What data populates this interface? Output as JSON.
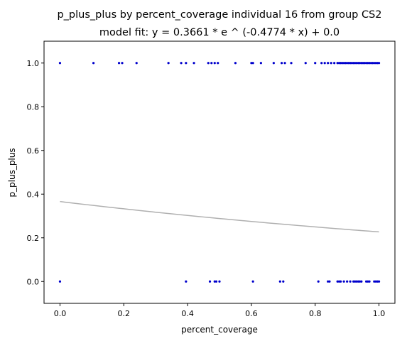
{
  "chart_data": {
    "type": "scatter",
    "title": "p_plus_plus by percent_coverage individual 16 from group CS2",
    "subtitle": "model fit: y = 0.3661 * e ^ (-0.4774 * x) + 0.0",
    "xlabel": "percent_coverage",
    "ylabel": "p_plus_plus",
    "xlim": [
      -0.05,
      1.05
    ],
    "ylim": [
      -0.1,
      1.1
    ],
    "xticks": [
      "0.0",
      "0.2",
      "0.4",
      "0.6",
      "0.8",
      "1.0"
    ],
    "yticks": [
      "0.0",
      "0.2",
      "0.4",
      "0.6",
      "0.8",
      "1.0"
    ],
    "grid": false,
    "colors": {
      "points": "#0000cc",
      "fit_line": "#b0b0b0"
    },
    "fit": {
      "a": 0.3661,
      "b": -0.4774,
      "c": 0.0,
      "x_range": [
        0,
        1
      ]
    },
    "series": [
      {
        "x": [
          0.0,
          0.105,
          0.185,
          0.195,
          0.24,
          0.34,
          0.38,
          0.395,
          0.42,
          0.465,
          0.475,
          0.485,
          0.495,
          0.55,
          0.6,
          0.605,
          0.63,
          0.67,
          0.695,
          0.705,
          0.725,
          0.77,
          0.8,
          0.82,
          0.83,
          0.84,
          0.85,
          0.86,
          0.87,
          0.875,
          0.88,
          0.885,
          0.89,
          0.895,
          0.9,
          0.905,
          0.91,
          0.915,
          0.92,
          0.925,
          0.93,
          0.935,
          0.94,
          0.945,
          0.95,
          0.955,
          0.96,
          0.965,
          0.97,
          0.975,
          0.98,
          0.985,
          0.99,
          0.995,
          1.0
        ],
        "y": [
          1,
          1,
          1,
          1,
          1,
          1,
          1,
          1,
          1,
          1,
          1,
          1,
          1,
          1,
          1,
          1,
          1,
          1,
          1,
          1,
          1,
          1,
          1,
          1,
          1,
          1,
          1,
          1,
          1,
          1,
          1,
          1,
          1,
          1,
          1,
          1,
          1,
          1,
          1,
          1,
          1,
          1,
          1,
          1,
          1,
          1,
          1,
          1,
          1,
          1,
          1,
          1,
          1,
          1,
          1
        ]
      },
      {
        "x": [
          0.0,
          0.395,
          0.47,
          0.485,
          0.49,
          0.5,
          0.605,
          0.69,
          0.7,
          0.81,
          0.84,
          0.845,
          0.87,
          0.875,
          0.88,
          0.89,
          0.9,
          0.91,
          0.92,
          0.925,
          0.93,
          0.935,
          0.94,
          0.945,
          0.96,
          0.965,
          0.97,
          0.985,
          0.99,
          0.995,
          1.0
        ],
        "y": [
          0,
          0,
          0,
          0,
          0,
          0,
          0,
          0,
          0,
          0,
          0,
          0,
          0,
          0,
          0,
          0,
          0,
          0,
          0,
          0,
          0,
          0,
          0,
          0,
          0,
          0,
          0,
          0,
          0,
          0,
          0
        ]
      }
    ]
  }
}
